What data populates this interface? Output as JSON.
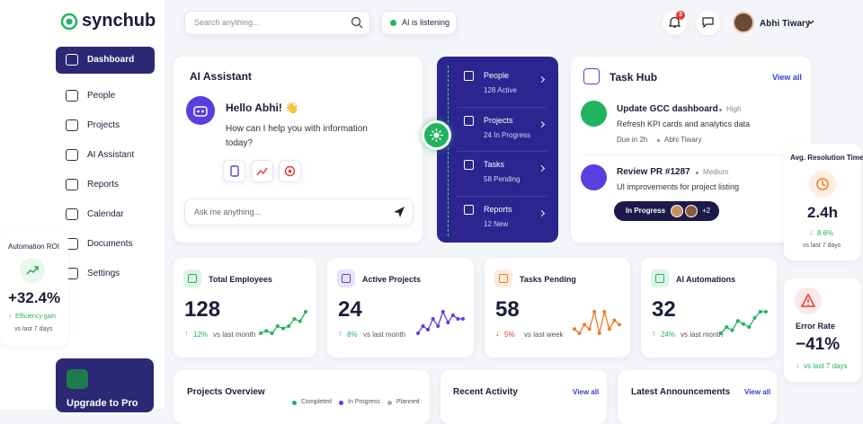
{
  "brand": "synchub",
  "nav": [
    "Dashboard",
    "People",
    "Projects",
    "AI Assistant",
    "Reports",
    "Calendar",
    "Documents",
    "Settings"
  ],
  "upgrade": "Upgrade to Pro",
  "search_placeholder": "Search anything...",
  "ai_status": "AI is listening",
  "notifications": 3,
  "user": "Abhi Tiwary",
  "assistant": {
    "title": "AI Assistant",
    "greeting": "Hello Abhi! 👋",
    "message": "How can I help you with information today?",
    "input_placeholder": "Ask me anything..."
  },
  "quick_links": [
    {
      "label": "People",
      "detail": "128 Active"
    },
    {
      "label": "Projects",
      "detail": "24 In Progress"
    },
    {
      "label": "Tasks",
      "detail": "58 Pending"
    },
    {
      "label": "Reports",
      "detail": "12 New"
    }
  ],
  "task_hub": {
    "title": "Task Hub",
    "link": "View all",
    "tasks": [
      {
        "title": "Update GCC dashboard",
        "priority": "High",
        "description": "Refresh KPI cards and analytics data",
        "due": "Due in 2h",
        "assignee": "Abhi Tiwary"
      },
      {
        "title": "Review PR #1287",
        "priority": "Medium",
        "description": "UI improvements for project listing",
        "status": "In Progress",
        "extra": "+2"
      }
    ]
  },
  "automation_roi": {
    "title": "Automation ROI",
    "value": "+32.4%",
    "change": "Efficiency gain",
    "period": "vs last 7 days"
  },
  "resolution": {
    "title": "Avg. Resolution Time",
    "value": "2.4h",
    "change": "8.6%",
    "period": "vs last 7 days"
  },
  "error_rate": {
    "title": "Error Rate",
    "value": "−41%",
    "change": "vs last 7 days"
  },
  "stats": [
    {
      "title": "Total Employees",
      "value": 128,
      "change": "12%",
      "period": "vs last month",
      "color": "#22b35e",
      "trend": [
        3,
        4,
        3,
        6,
        5,
        6,
        9,
        8,
        12
      ]
    },
    {
      "title": "Active Projects",
      "value": 24,
      "change": "8%",
      "period": "vs last month",
      "color": "#5b3ee0",
      "trend": [
        3,
        5,
        4,
        7,
        5,
        9,
        6,
        8,
        7,
        7
      ]
    },
    {
      "title": "Tasks Pending",
      "value": 58,
      "change": "5%",
      "period": "vs last week",
      "color": "#f47a20",
      "trend": [
        4,
        3,
        5,
        4,
        8,
        3,
        8,
        4,
        6,
        5
      ]
    },
    {
      "title": "AI Automations",
      "value": 32,
      "change": "24%",
      "period": "vs last month",
      "color": "#22b35e",
      "trend": [
        3,
        5,
        4,
        7,
        6,
        5,
        8,
        10,
        10
      ]
    }
  ],
  "projects_overview": {
    "title": "Projects Overview",
    "legend": [
      "Completed",
      "In Progress",
      "Planned"
    ]
  },
  "recent_activity": {
    "title": "Recent Activity",
    "link": "View all"
  },
  "announcements": {
    "title": "Latest Announcements",
    "link": "View all"
  }
}
